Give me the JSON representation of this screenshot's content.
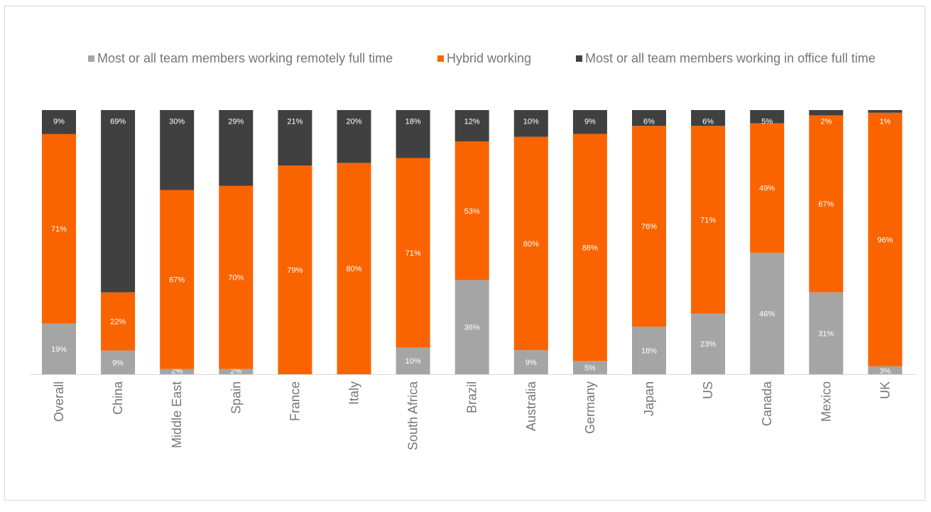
{
  "chart_data": {
    "type": "bar",
    "stacked": true,
    "percent_stacked": true,
    "categories": [
      "Overall",
      "China",
      "Middle East",
      "Spain",
      "France",
      "Italy",
      "South Africa",
      "Brazil",
      "Australia",
      "Germany",
      "Japan",
      "US",
      "Canada",
      "Mexico",
      "UK"
    ],
    "series": [
      {
        "name": "Most or all team members working remotely full time",
        "color": "#a5a5a5",
        "values": [
          19,
          9,
          2,
          2,
          0,
          0,
          10,
          36,
          9,
          5,
          18,
          23,
          46,
          31,
          3
        ],
        "labels": [
          "19%",
          "9%",
          "2%",
          "2%",
          "0%",
          "0%",
          "10%",
          "36%",
          "9%",
          "5%",
          "18%",
          "23%",
          "46%",
          "31%",
          "3%"
        ]
      },
      {
        "name": "Hybrid working",
        "color": "#fa6400",
        "values": [
          71,
          22,
          67,
          70,
          79,
          80,
          71,
          53,
          80,
          86,
          76,
          71,
          49,
          67,
          96
        ],
        "labels": [
          "71%",
          "22%",
          "67%",
          "70%",
          "79%",
          "80%",
          "71%",
          "53%",
          "80%",
          "86%",
          "76%",
          "71%",
          "49%",
          "67%",
          "96%"
        ]
      },
      {
        "name": "Most or all team members working in office full time",
        "color": "#404040",
        "values": [
          9,
          69,
          30,
          29,
          21,
          20,
          18,
          12,
          10,
          9,
          6,
          6,
          5,
          2,
          1
        ],
        "labels": [
          "9%",
          "69%",
          "30%",
          "29%",
          "21%",
          "20%",
          "18%",
          "12%",
          "10%",
          "9%",
          "6%",
          "6%",
          "5%",
          "2%",
          "1%"
        ]
      }
    ],
    "legend_position": "top",
    "grid": false
  }
}
